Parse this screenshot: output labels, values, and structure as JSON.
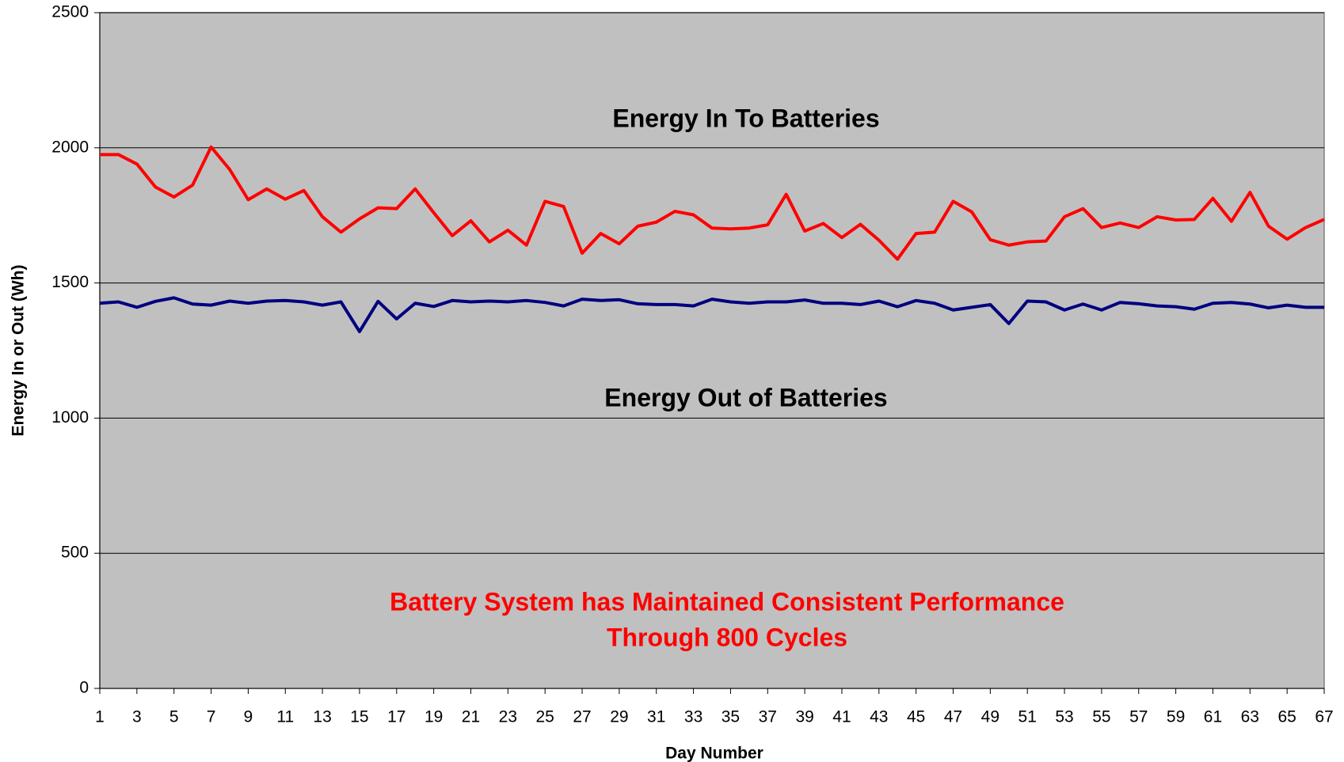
{
  "chart_data": {
    "type": "line",
    "xlabel": "Day Number",
    "ylabel": "Energy In or Out (Wh)",
    "annotations": [
      {
        "text": "Energy In To Batteries",
        "color": "#000000"
      },
      {
        "text": "Energy Out of Batteries",
        "color": "#000000"
      },
      {
        "text": "Battery System has Maintained Consistent Performance",
        "color": "#ff0000"
      },
      {
        "text": "Through 800 Cycles",
        "color": "#ff0000"
      }
    ],
    "x": [
      1,
      2,
      3,
      4,
      5,
      6,
      7,
      8,
      9,
      10,
      11,
      12,
      13,
      14,
      15,
      16,
      17,
      18,
      19,
      20,
      21,
      22,
      23,
      24,
      25,
      26,
      27,
      28,
      29,
      30,
      31,
      32,
      33,
      34,
      35,
      36,
      37,
      38,
      39,
      40,
      41,
      42,
      43,
      44,
      45,
      46,
      47,
      48,
      49,
      50,
      51,
      52,
      53,
      54,
      55,
      56,
      57,
      58,
      59,
      60,
      61,
      62,
      63,
      64,
      65,
      66,
      67
    ],
    "series": [
      {
        "name": "Energy In",
        "color": "#ff0000",
        "values": [
          1975,
          1975,
          1940,
          1855,
          1818,
          1862,
          2003,
          1920,
          1808,
          1848,
          1810,
          1842,
          1745,
          1688,
          1737,
          1778,
          1775,
          1848,
          1760,
          1675,
          1730,
          1652,
          1695,
          1640,
          1802,
          1783,
          1610,
          1683,
          1645,
          1710,
          1725,
          1765,
          1752,
          1703,
          1700,
          1703,
          1715,
          1828,
          1692,
          1720,
          1668,
          1717,
          1658,
          1588,
          1683,
          1688,
          1802,
          1763,
          1660,
          1640,
          1652,
          1655,
          1745,
          1775,
          1705,
          1722,
          1705,
          1745,
          1733,
          1735,
          1813,
          1728,
          1835,
          1710,
          1662,
          1705,
          1735
        ]
      },
      {
        "name": "Energy Out",
        "color": "#000080",
        "values": [
          1425,
          1430,
          1410,
          1432,
          1445,
          1422,
          1418,
          1433,
          1425,
          1433,
          1435,
          1430,
          1418,
          1430,
          1320,
          1432,
          1367,
          1425,
          1413,
          1435,
          1430,
          1433,
          1430,
          1435,
          1428,
          1415,
          1440,
          1435,
          1438,
          1423,
          1420,
          1420,
          1415,
          1440,
          1430,
          1425,
          1430,
          1430,
          1437,
          1425,
          1425,
          1420,
          1433,
          1412,
          1435,
          1425,
          1400,
          1410,
          1420,
          1350,
          1433,
          1430,
          1400,
          1422,
          1400,
          1428,
          1423,
          1415,
          1412,
          1403,
          1425,
          1428,
          1422,
          1408,
          1418,
          1410,
          1410
        ]
      }
    ],
    "xlim": [
      1,
      67
    ],
    "xticks": [
      1,
      3,
      5,
      7,
      9,
      11,
      13,
      15,
      17,
      19,
      21,
      23,
      25,
      27,
      29,
      31,
      33,
      35,
      37,
      39,
      41,
      43,
      45,
      47,
      49,
      51,
      53,
      55,
      57,
      59,
      61,
      63,
      65,
      67
    ],
    "ylim": [
      0,
      2500
    ],
    "yticks": [
      0,
      500,
      1000,
      1500,
      2000,
      2500
    ],
    "grid": true,
    "background": "#c0c0c0"
  }
}
